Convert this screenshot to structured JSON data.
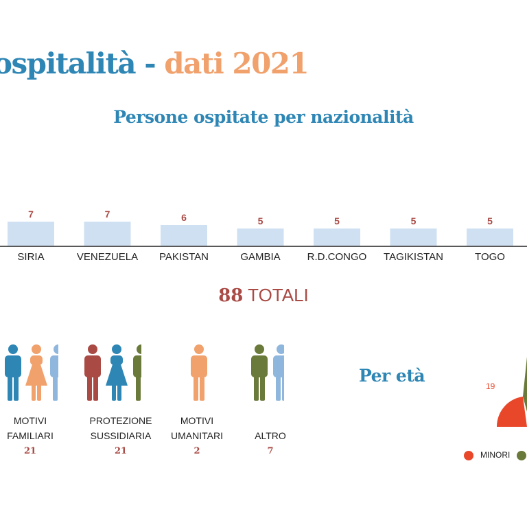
{
  "header": {
    "title_part1": "ospitalità - ",
    "title_part2": "dati 2021",
    "subtitle": "Persone ospitate per nazionalità"
  },
  "chart_data": [
    {
      "type": "bar",
      "title": "Persone ospitate per nazionalità",
      "categories": [
        "SIRIA",
        "VENEZUELA",
        "PAKISTAN",
        "GAMBIA",
        "R.D.CONGO",
        "TAGIKISTAN",
        "TOGO"
      ],
      "values": [
        7,
        7,
        6,
        5,
        5,
        5,
        5
      ],
      "bar_color": "#cfe0f2",
      "label_color": "#a94a45",
      "xlabel": "",
      "ylabel": ""
    },
    {
      "type": "pie",
      "title": "Per età",
      "slices": [
        {
          "name": "MINORI",
          "value": 19,
          "color": "#e8472a"
        },
        {
          "name": "",
          "value": null,
          "color": "#6a7a3a"
        }
      ]
    }
  ],
  "totals": {
    "number": "88",
    "label": "TOTALI"
  },
  "permits": [
    {
      "line1": "MOTIVI",
      "line2": "FAMILIARI",
      "count": "21",
      "people": [
        {
          "type": "man",
          "color": "#2e86b5"
        },
        {
          "type": "woman",
          "color": "#f0a16c"
        },
        {
          "type": "man",
          "color": "#8fb7dd"
        }
      ]
    },
    {
      "line1": "PROTEZIONE",
      "line2": "SUSSIDIARIA",
      "count": "21",
      "people": [
        {
          "type": "man",
          "color": "#a94a45"
        },
        {
          "type": "woman",
          "color": "#2e86b5"
        },
        {
          "type": "man",
          "color": "#6a7a3a"
        }
      ]
    },
    {
      "line1": "MOTIVI",
      "line2": "UMANITARI",
      "count": "2",
      "people": [
        {
          "type": "man",
          "color": "#f0a16c"
        }
      ]
    },
    {
      "line1": "ALTRO",
      "line2": "",
      "count": "7",
      "people": [
        {
          "type": "man",
          "color": "#6a7a3a"
        },
        {
          "type": "man",
          "color": "#8fb7dd"
        }
      ]
    }
  ],
  "age_section": {
    "title": "Per età"
  }
}
